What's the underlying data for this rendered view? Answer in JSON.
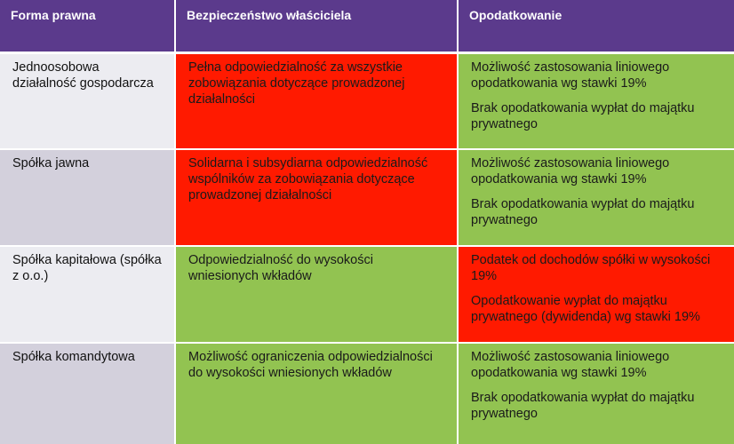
{
  "headers": [
    "Forma prawna",
    "Bezpieczeństwo właściciela",
    "Opodatkowanie"
  ],
  "rows": [
    {
      "form": "Jednoosobowa działalność gospodarcza",
      "security": "Pełna odpowiedzialność za wszystkie zobowiązania dotyczące prowadzonej działalności",
      "security_status": "red",
      "tax": [
        "Możliwość zastosowania liniowego opodatkowania wg stawki 19%",
        "Brak opodatkowania wypłat do majątku prywatnego"
      ],
      "tax_status": "green"
    },
    {
      "form": "Spółka jawna",
      "security": "Solidarna i subsydiarna odpowiedzialność wspólników za zobowiązania dotyczące prowadzonej działalności",
      "security_status": "red",
      "tax": [
        "Możliwość zastosowania liniowego opodatkowania wg stawki 19%",
        "Brak opodatkowania wypłat do majątku prywatnego"
      ],
      "tax_status": "green"
    },
    {
      "form": "Spółka kapitałowa (spółka z o.o.)",
      "security": "Odpowiedzialność do wysokości wniesionych wkładów",
      "security_status": "green",
      "tax": [
        "Podatek od dochodów spółki w wysokości 19%",
        "Opodatkowanie wypłat do majątku prywatnego (dywidenda) wg stawki 19%"
      ],
      "tax_status": "red"
    },
    {
      "form": "Spółka komandytowa",
      "security": "Możliwość ograniczenia odpowiedzialności do wysokości wniesionych wkładów",
      "security_status": "green",
      "tax": [
        "Możliwość zastosowania liniowego opodatkowania wg stawki 19%",
        "Brak opodatkowania wypłat do majątku prywatnego"
      ],
      "tax_status": "green"
    }
  ],
  "colors": {
    "header": "#5b3a8c",
    "red": "#ff1a00",
    "green": "#92c351",
    "row_light": "#ececf1",
    "row_mid": "#d3d0dc"
  }
}
